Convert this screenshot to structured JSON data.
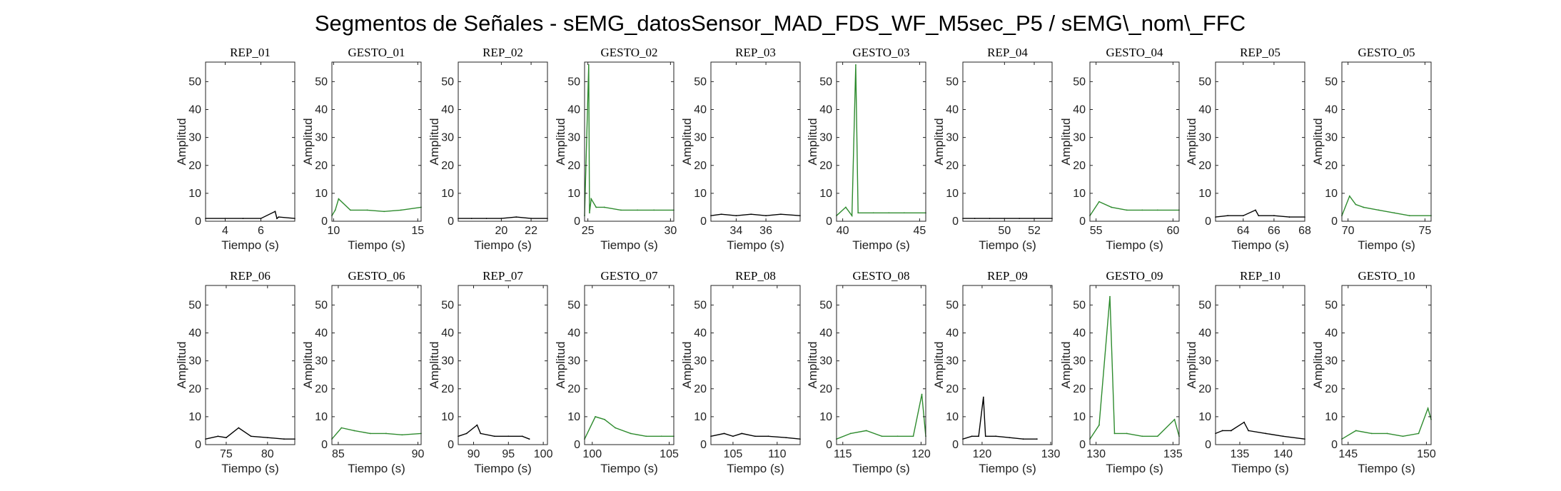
{
  "figure": {
    "title": "Segmentos de Señales - sEMG_datosSensor_MAD_FDS_WF_M5sec_P5 / sEMG\\_nom\\_FFC",
    "colors": {
      "rep": "#000000",
      "gesto": "#2e8b2e"
    }
  },
  "chart_data": [
    {
      "type": "line",
      "title": "REP_01",
      "kind": "rep",
      "xlabel": "Tiempo (s)",
      "ylabel": "Amplitud",
      "xlim": [
        2.9,
        7.9
      ],
      "ylim": [
        0,
        57
      ],
      "xticks": [
        4,
        6
      ],
      "yticks": [
        0,
        10,
        20,
        30,
        40,
        50
      ],
      "series": [
        {
          "x": [
            2.9,
            4.0,
            5.0,
            6.0,
            6.8,
            6.9,
            7.0,
            7.9
          ],
          "y": [
            1,
            1,
            1,
            1,
            3.5,
            1,
            1.5,
            1
          ]
        }
      ]
    },
    {
      "type": "line",
      "title": "GESTO_01",
      "kind": "gesto",
      "xlabel": "Tiempo (s)",
      "ylabel": "Amplitud",
      "xlim": [
        9.9,
        15.2
      ],
      "ylim": [
        0,
        57
      ],
      "xticks": [
        10,
        15
      ],
      "yticks": [
        0,
        10,
        20,
        30,
        40,
        50
      ],
      "series": [
        {
          "x": [
            9.9,
            10.1,
            10.3,
            11,
            12,
            13,
            14,
            15.2
          ],
          "y": [
            2,
            4,
            8,
            4,
            4,
            3.5,
            4,
            5
          ]
        }
      ]
    },
    {
      "type": "line",
      "title": "REP_02",
      "kind": "rep",
      "xlabel": "Tiempo (s)",
      "ylabel": "Amplitud",
      "xlim": [
        17.1,
        23.1
      ],
      "ylim": [
        0,
        57
      ],
      "xticks": [
        20,
        22
      ],
      "yticks": [
        0,
        10,
        20,
        30,
        40,
        50
      ],
      "series": [
        {
          "x": [
            17.1,
            18,
            19,
            20,
            21,
            22,
            23.1
          ],
          "y": [
            1,
            1,
            1,
            1,
            1.5,
            1,
            1
          ]
        }
      ]
    },
    {
      "type": "line",
      "title": "GESTO_02",
      "kind": "gesto",
      "xlabel": "Tiempo (s)",
      "ylabel": "Amplitud",
      "xlim": [
        24.8,
        30.2
      ],
      "ylim": [
        0,
        57
      ],
      "xticks": [
        25,
        30
      ],
      "yticks": [
        0,
        10,
        20,
        30,
        40,
        50
      ],
      "series": [
        {
          "x": [
            24.8,
            25.05,
            25.1,
            25.2,
            25.5,
            26,
            27,
            28,
            29,
            30.2
          ],
          "y": [
            2,
            56,
            3,
            8,
            5,
            5,
            4,
            4,
            4,
            4
          ]
        }
      ]
    },
    {
      "type": "line",
      "title": "REP_03",
      "kind": "rep",
      "xlabel": "Tiempo (s)",
      "ylabel": "Amplitud",
      "xlim": [
        32.3,
        38.3
      ],
      "ylim": [
        0,
        57
      ],
      "xticks": [
        34,
        36
      ],
      "yticks": [
        0,
        10,
        20,
        30,
        40,
        50
      ],
      "series": [
        {
          "x": [
            32.3,
            33,
            34,
            35,
            36,
            37,
            38.3
          ],
          "y": [
            2,
            2.5,
            2,
            2.5,
            2,
            2.5,
            2
          ]
        }
      ]
    },
    {
      "type": "line",
      "title": "GESTO_03",
      "kind": "gesto",
      "xlabel": "Tiempo (s)",
      "ylabel": "Amplitud",
      "xlim": [
        39.6,
        45.4
      ],
      "ylim": [
        0,
        57
      ],
      "xticks": [
        40,
        45
      ],
      "yticks": [
        0,
        10,
        20,
        30,
        40,
        50
      ],
      "series": [
        {
          "x": [
            39.6,
            40.2,
            40.6,
            40.85,
            41,
            42,
            43,
            44,
            45.4
          ],
          "y": [
            2,
            5,
            2,
            56,
            3,
            3,
            3,
            3,
            3
          ]
        }
      ]
    },
    {
      "type": "line",
      "title": "REP_04",
      "kind": "rep",
      "xlabel": "Tiempo (s)",
      "ylabel": "Amplitud",
      "xlim": [
        47.2,
        53.2
      ],
      "ylim": [
        0,
        57
      ],
      "xticks": [
        50,
        52
      ],
      "yticks": [
        0,
        10,
        20,
        30,
        40,
        50
      ],
      "series": [
        {
          "x": [
            47.2,
            48,
            49,
            50,
            51,
            52,
            53.2
          ],
          "y": [
            1,
            1,
            1,
            1,
            1,
            1,
            1
          ]
        }
      ]
    },
    {
      "type": "line",
      "title": "GESTO_04",
      "kind": "gesto",
      "xlabel": "Tiempo (s)",
      "ylabel": "Amplitud",
      "xlim": [
        54.6,
        60.4
      ],
      "ylim": [
        0,
        57
      ],
      "xticks": [
        55,
        60
      ],
      "yticks": [
        0,
        10,
        20,
        30,
        40,
        50
      ],
      "series": [
        {
          "x": [
            54.6,
            55.2,
            56,
            57,
            58,
            59,
            60.4
          ],
          "y": [
            2,
            7,
            5,
            4,
            4,
            4,
            4
          ]
        }
      ]
    },
    {
      "type": "line",
      "title": "REP_05",
      "kind": "rep",
      "xlabel": "Tiempo (s)",
      "ylabel": "Amplitud",
      "xlim": [
        62.2,
        68.0
      ],
      "ylim": [
        0,
        57
      ],
      "xticks": [
        64,
        66,
        68
      ],
      "yticks": [
        0,
        10,
        20,
        30,
        40,
        50
      ],
      "series": [
        {
          "x": [
            62.2,
            63,
            64,
            64.8,
            65,
            66,
            67,
            68
          ],
          "y": [
            1.5,
            2,
            2,
            4,
            2,
            2,
            1.5,
            1.5
          ]
        }
      ]
    },
    {
      "type": "line",
      "title": "GESTO_05",
      "kind": "gesto",
      "xlabel": "Tiempo (s)",
      "ylabel": "Amplitud",
      "xlim": [
        69.6,
        75.4
      ],
      "ylim": [
        0,
        57
      ],
      "xticks": [
        70,
        75
      ],
      "yticks": [
        0,
        10,
        20,
        30,
        40,
        50
      ],
      "series": [
        {
          "x": [
            69.6,
            70.1,
            70.5,
            71,
            72,
            73,
            74,
            75.4
          ],
          "y": [
            2,
            9,
            6,
            5,
            4,
            3,
            2,
            2
          ]
        }
      ]
    },
    {
      "type": "line",
      "title": "REP_06",
      "kind": "rep",
      "xlabel": "Tiempo (s)",
      "ylabel": "Amplitud",
      "xlim": [
        72.5,
        83.3
      ],
      "ylim": [
        0,
        57
      ],
      "xticks": [
        75,
        80
      ],
      "yticks": [
        0,
        10,
        20,
        30,
        40,
        50
      ],
      "series": [
        {
          "x": [
            72.5,
            74,
            75,
            76.5,
            78,
            80,
            82,
            83.3
          ],
          "y": [
            2,
            3,
            2.5,
            6,
            3,
            2.5,
            2,
            2
          ]
        }
      ]
    },
    {
      "type": "line",
      "title": "GESTO_06",
      "kind": "gesto",
      "xlabel": "Tiempo (s)",
      "ylabel": "Amplitud",
      "xlim": [
        84.6,
        90.2
      ],
      "ylim": [
        0,
        57
      ],
      "xticks": [
        85,
        90
      ],
      "yticks": [
        0,
        10,
        20,
        30,
        40,
        50
      ],
      "series": [
        {
          "x": [
            84.6,
            85.2,
            86,
            87,
            88,
            89,
            90.2
          ],
          "y": [
            2,
            6,
            5,
            4,
            4,
            3.5,
            4
          ]
        }
      ]
    },
    {
      "type": "line",
      "title": "REP_07",
      "kind": "rep",
      "xlabel": "Tiempo (s)",
      "ylabel": "Amplitud",
      "xlim": [
        87.8,
        100.6
      ],
      "ylim": [
        0,
        57
      ],
      "xticks": [
        90,
        95,
        100
      ],
      "yticks": [
        0,
        10,
        20,
        30,
        40,
        50
      ],
      "series": [
        {
          "x": [
            87.8,
            89,
            90.5,
            91,
            93,
            95,
            97,
            98
          ],
          "y": [
            3,
            4,
            7,
            4,
            3,
            3,
            3,
            2
          ]
        }
      ]
    },
    {
      "type": "line",
      "title": "GESTO_07",
      "kind": "gesto",
      "xlabel": "Tiempo (s)",
      "ylabel": "Amplitud",
      "xlim": [
        99.5,
        105.3
      ],
      "ylim": [
        0,
        57
      ],
      "xticks": [
        100,
        105
      ],
      "yticks": [
        0,
        10,
        20,
        30,
        40,
        50
      ],
      "series": [
        {
          "x": [
            99.5,
            100.2,
            100.8,
            101.5,
            102.5,
            103.5,
            104.5,
            105.3
          ],
          "y": [
            2,
            10,
            9,
            6,
            4,
            3,
            3,
            3
          ]
        }
      ]
    },
    {
      "type": "line",
      "title": "REP_08",
      "kind": "rep",
      "xlabel": "Tiempo (s)",
      "ylabel": "Amplitud",
      "xlim": [
        102.5,
        112.6
      ],
      "ylim": [
        0,
        57
      ],
      "xticks": [
        105,
        110
      ],
      "yticks": [
        0,
        10,
        20,
        30,
        40,
        50
      ],
      "series": [
        {
          "x": [
            102.5,
            104,
            105,
            106,
            107.5,
            109,
            111,
            112.6
          ],
          "y": [
            3,
            4,
            3,
            4,
            3,
            3,
            2.5,
            2
          ]
        }
      ]
    },
    {
      "type": "line",
      "title": "GESTO_08",
      "kind": "gesto",
      "xlabel": "Tiempo (s)",
      "ylabel": "Amplitud",
      "xlim": [
        114.6,
        120.3
      ],
      "ylim": [
        0,
        57
      ],
      "xticks": [
        115,
        120
      ],
      "yticks": [
        0,
        10,
        20,
        30,
        40,
        50
      ],
      "series": [
        {
          "x": [
            114.6,
            115.5,
            116.5,
            117.5,
            118.5,
            119.5,
            120.05,
            120.3
          ],
          "y": [
            2,
            4,
            5,
            3,
            3,
            3,
            18,
            3
          ]
        }
      ]
    },
    {
      "type": "line",
      "title": "REP_09",
      "kind": "rep",
      "xlabel": "Tiempo (s)",
      "ylabel": "Amplitud",
      "xlim": [
        117.2,
        130.2
      ],
      "ylim": [
        0,
        57
      ],
      "xticks": [
        120,
        130
      ],
      "yticks": [
        0,
        10,
        20,
        30,
        40,
        50
      ],
      "series": [
        {
          "x": [
            117.2,
            118.5,
            119.5,
            120.2,
            120.5,
            122,
            124,
            126,
            128
          ],
          "y": [
            2,
            3,
            3,
            17,
            3,
            3,
            2.5,
            2,
            2
          ]
        }
      ]
    },
    {
      "type": "line",
      "title": "GESTO_09",
      "kind": "gesto",
      "xlabel": "Tiempo (s)",
      "ylabel": "Amplitud",
      "xlim": [
        129.6,
        135.4
      ],
      "ylim": [
        0,
        57
      ],
      "xticks": [
        130,
        135
      ],
      "yticks": [
        0,
        10,
        20,
        30,
        40,
        50
      ],
      "series": [
        {
          "x": [
            129.6,
            130.2,
            130.9,
            131.2,
            132,
            133,
            134,
            135.1,
            135.4
          ],
          "y": [
            2,
            7,
            53,
            4,
            4,
            3,
            3,
            9,
            3
          ]
        }
      ]
    },
    {
      "type": "line",
      "title": "REP_10",
      "kind": "rep",
      "xlabel": "Tiempo (s)",
      "ylabel": "Amplitud",
      "xlim": [
        132.2,
        142.5
      ],
      "ylim": [
        0,
        57
      ],
      "xticks": [
        135,
        140
      ],
      "yticks": [
        0,
        10,
        20,
        30,
        40,
        50
      ],
      "series": [
        {
          "x": [
            132.2,
            133,
            134,
            135.5,
            136,
            138,
            140,
            142.5
          ],
          "y": [
            4,
            5,
            5,
            8,
            5,
            4,
            3,
            2
          ]
        }
      ]
    },
    {
      "type": "line",
      "title": "GESTO_10",
      "kind": "gesto",
      "xlabel": "Tiempo (s)",
      "ylabel": "Amplitud",
      "xlim": [
        144.6,
        150.3
      ],
      "ylim": [
        0,
        57
      ],
      "xticks": [
        145,
        150
      ],
      "yticks": [
        0,
        10,
        20,
        30,
        40,
        50
      ],
      "series": [
        {
          "x": [
            144.6,
            145.5,
            146.5,
            147.5,
            148.5,
            149.5,
            150.1,
            150.3
          ],
          "y": [
            2,
            5,
            4,
            4,
            3,
            4,
            13,
            9
          ]
        }
      ]
    }
  ]
}
